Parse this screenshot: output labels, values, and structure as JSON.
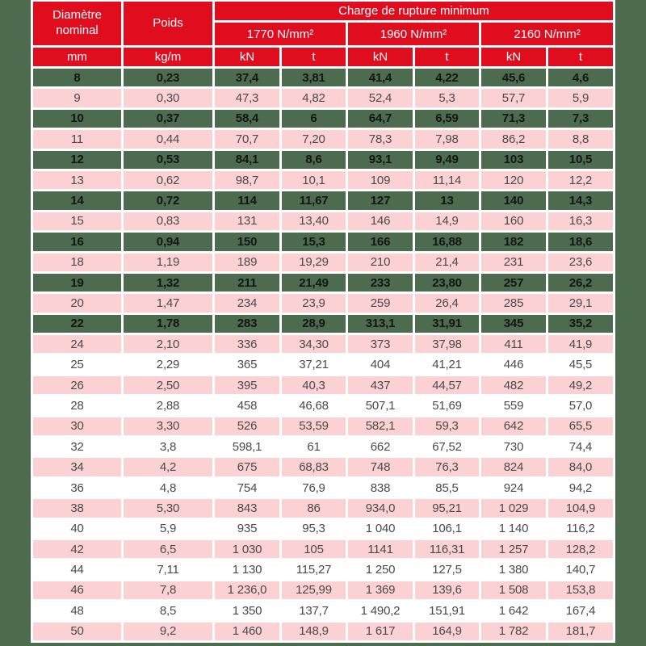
{
  "chart_data": {
    "type": "table",
    "title": "Charge de rupture minimum",
    "header": {
      "diameter": "Diamètre nominal",
      "weight": "Poids",
      "charge": "Charge de rupture minimum",
      "classes": [
        "1770 N/mm²",
        "1960 N/mm²",
        "2160 N/mm²"
      ],
      "units": [
        "mm",
        "kg/m",
        "kN",
        "t",
        "kN",
        "t",
        "kN",
        "t"
      ]
    },
    "columns": [
      "Diamètre nominal (mm)",
      "Poids (kg/m)",
      "1770 N/mm² kN",
      "1770 N/mm² t",
      "1960 N/mm² kN",
      "1960 N/mm² t",
      "2160 N/mm² kN",
      "2160 N/mm² t"
    ],
    "colors": {
      "header_red": "#e00d1e",
      "highlight_green": "#4c6b4f",
      "stripe_pink": "#fbd1d4",
      "stripe_white": "#ffffff",
      "page_background": "#4c6b4f",
      "header_text": "#ffffff",
      "body_text": "#4a4a4a",
      "highlight_text": "#151515"
    },
    "rows": [
      {
        "style": "green",
        "cells": [
          "8",
          "0,23",
          "37,4",
          "3,81",
          "41,4",
          "4,22",
          "45,6",
          "4,6"
        ]
      },
      {
        "style": "pink",
        "cells": [
          "9",
          "0,30",
          "47,3",
          "4,82",
          "52,4",
          "5,3",
          "57,7",
          "5,9"
        ]
      },
      {
        "style": "green",
        "cells": [
          "10",
          "0,37",
          "58,4",
          "6",
          "64,7",
          "6,59",
          "71,3",
          "7,3"
        ]
      },
      {
        "style": "pink",
        "cells": [
          "11",
          "0,44",
          "70,7",
          "7,20",
          "78,3",
          "7,98",
          "86,2",
          "8,8"
        ]
      },
      {
        "style": "green",
        "cells": [
          "12",
          "0,53",
          "84,1",
          "8,6",
          "93,1",
          "9,49",
          "103",
          "10,5"
        ]
      },
      {
        "style": "pink",
        "cells": [
          "13",
          "0,62",
          "98,7",
          "10,1",
          "109",
          "11,14",
          "120",
          "12,2"
        ]
      },
      {
        "style": "green",
        "cells": [
          "14",
          "0,72",
          "114",
          "11,67",
          "127",
          "13",
          "140",
          "14,3"
        ]
      },
      {
        "style": "pink",
        "cells": [
          "15",
          "0,83",
          "131",
          "13,40",
          "146",
          "14,9",
          "160",
          "16,3"
        ]
      },
      {
        "style": "green",
        "cells": [
          "16",
          "0,94",
          "150",
          "15,3",
          "166",
          "16,88",
          "182",
          "18,6"
        ]
      },
      {
        "style": "pink",
        "cells": [
          "18",
          "1,19",
          "189",
          "19,29",
          "210",
          "21,4",
          "231",
          "23,6"
        ]
      },
      {
        "style": "green",
        "cells": [
          "19",
          "1,32",
          "211",
          "21,49",
          "233",
          "23,80",
          "257",
          "26,2"
        ]
      },
      {
        "style": "pink",
        "cells": [
          "20",
          "1,47",
          "234",
          "23,9",
          "259",
          "26,4",
          "285",
          "29,1"
        ]
      },
      {
        "style": "green",
        "cells": [
          "22",
          "1,78",
          "283",
          "28,9",
          "313,1",
          "31,91",
          "345",
          "35,2"
        ]
      },
      {
        "style": "pink",
        "cells": [
          "24",
          "2,10",
          "336",
          "34,30",
          "373",
          "37,98",
          "411",
          "41,9"
        ]
      },
      {
        "style": "white",
        "cells": [
          "25",
          "2,29",
          "365",
          "37,21",
          "404",
          "41,21",
          "446",
          "45,5"
        ]
      },
      {
        "style": "pink",
        "cells": [
          "26",
          "2,50",
          "395",
          "40,3",
          "437",
          "44,57",
          "482",
          "49,2"
        ]
      },
      {
        "style": "white",
        "cells": [
          "28",
          "2,88",
          "458",
          "46,68",
          "507,1",
          "51,69",
          "559",
          "57,0"
        ]
      },
      {
        "style": "pink",
        "cells": [
          "30",
          "3,30",
          "526",
          "53,59",
          "582,1",
          "59,3",
          "642",
          "65,5"
        ]
      },
      {
        "style": "white",
        "cells": [
          "32",
          "3,8",
          "598,1",
          "61",
          "662",
          "67,52",
          "730",
          "74,4"
        ]
      },
      {
        "style": "pink",
        "cells": [
          "34",
          "4,2",
          "675",
          "68,83",
          "748",
          "76,3",
          "824",
          "84,0"
        ]
      },
      {
        "style": "white",
        "cells": [
          "36",
          "4,8",
          "754",
          "76,9",
          "838",
          "85,5",
          "924",
          "94,2"
        ]
      },
      {
        "style": "pink",
        "cells": [
          "38",
          "5,30",
          "843",
          "86",
          "934,0",
          "95,21",
          "1 029",
          "104,9"
        ]
      },
      {
        "style": "white",
        "cells": [
          "40",
          "5,9",
          "935",
          "95,3",
          "1 040",
          "106,1",
          "1 140",
          "116,2"
        ]
      },
      {
        "style": "pink",
        "cells": [
          "42",
          "6,5",
          "1 030",
          "105",
          "1141",
          "116,31",
          "1 257",
          "128,2"
        ]
      },
      {
        "style": "white",
        "cells": [
          "44",
          "7,11",
          "1 130",
          "115,27",
          "1 250",
          "127,5",
          "1 380",
          "140,7"
        ]
      },
      {
        "style": "pink",
        "cells": [
          "46",
          "7,8",
          "1 236,0",
          "125,99",
          "1 369",
          "139,6",
          "1 508",
          "153,8"
        ]
      },
      {
        "style": "white",
        "cells": [
          "48",
          "8,5",
          "1 350",
          "137,7",
          "1 490,2",
          "151,91",
          "1 642",
          "167,4"
        ]
      },
      {
        "style": "pink",
        "cells": [
          "50",
          "9,2",
          "1 460",
          "148,9",
          "1 617",
          "164,9",
          "1 782",
          "181,7"
        ]
      }
    ]
  }
}
